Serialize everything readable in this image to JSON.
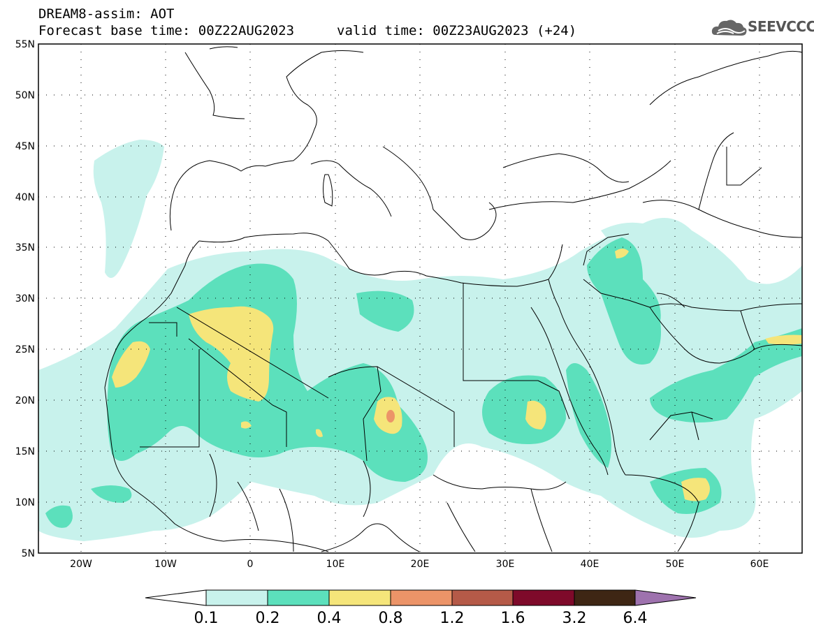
{
  "header": {
    "line1": "DREAM8-assim: AOT",
    "line2": "Forecast base time: 00Z22AUG2023",
    "valid": "valid time: 00Z23AUG2023 (+24)",
    "logo_text": "SEEVCCC",
    "logo_icon": "cloud-icon"
  },
  "map": {
    "lat_labels": [
      "55N",
      "50N",
      "45N",
      "40N",
      "35N",
      "30N",
      "25N",
      "20N",
      "15N",
      "10N",
      "5N"
    ],
    "lon_labels": [
      "20W",
      "10W",
      "0",
      "10E",
      "20E",
      "30E",
      "40E",
      "50E",
      "60E"
    ],
    "lat_range": [
      5,
      55
    ],
    "lon_range": [
      -25,
      65
    ],
    "grid": "dotted"
  },
  "colorbar": {
    "labels": [
      "0.1",
      "0.2",
      "0.4",
      "0.8",
      "1.2",
      "1.6",
      "3.2",
      "6.4"
    ],
    "colors": [
      "#c8f2ec",
      "#5ce0bc",
      "#f5e57a",
      "#ec9468",
      "#b55a48",
      "#7e0a2a",
      "#3e2614",
      "#9e72ae"
    ],
    "under_color": "#ffffff",
    "over_color": "#9e72ae"
  }
}
